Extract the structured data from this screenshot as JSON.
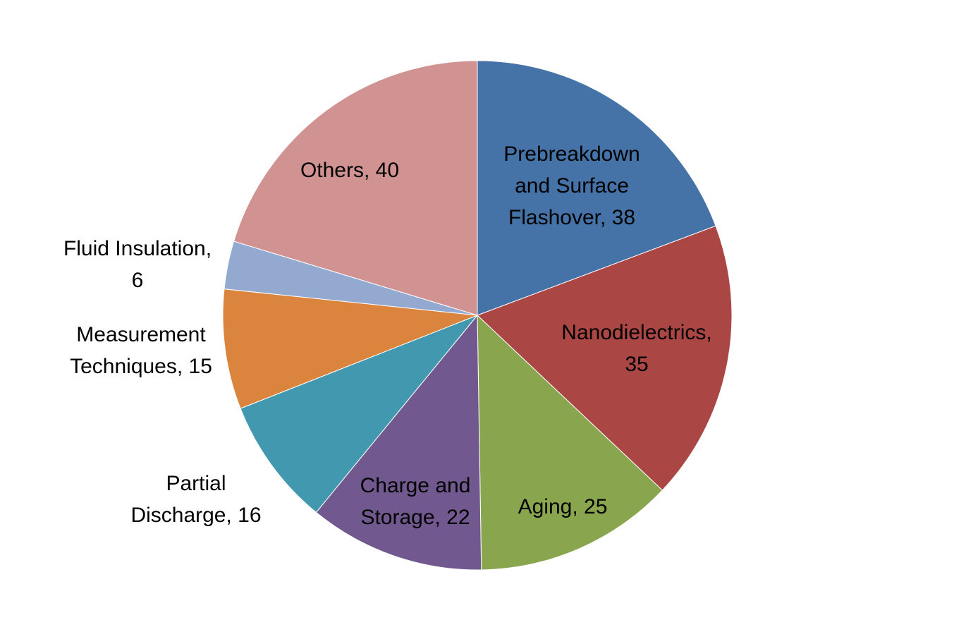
{
  "chart_data": {
    "type": "pie",
    "title": "",
    "start_angle_deg": 0,
    "direction": "clockwise",
    "slices": [
      {
        "label_lines": [
          "Prebreakdown",
          "and Surface",
          "Flashover, 38"
        ],
        "category": "Prebreakdown and Surface Flashover",
        "value": 38,
        "color": "#4572A7"
      },
      {
        "label_lines": [
          "Nanodielectrics,",
          "35"
        ],
        "category": "Nanodielectrics",
        "value": 35,
        "color": "#AA4643"
      },
      {
        "label_lines": [
          "Aging, 25"
        ],
        "category": "Aging",
        "value": 25,
        "color": "#89A54E"
      },
      {
        "label_lines": [
          "Charge and",
          "Storage, 22"
        ],
        "category": "Charge and Storage",
        "value": 22,
        "color": "#71588F"
      },
      {
        "label_lines": [
          "Partial",
          "Discharge, 16"
        ],
        "category": "Partial Discharge",
        "value": 16,
        "color": "#4198AF"
      },
      {
        "label_lines": [
          "Measurement",
          "Techniques, 15"
        ],
        "category": "Measurement Techniques",
        "value": 15,
        "color": "#DB843D"
      },
      {
        "label_lines": [
          "Fluid Insulation,",
          "6"
        ],
        "category": "Fluid Insulation",
        "value": 6,
        "color": "#93A9CF"
      },
      {
        "label_lines": [
          "Others, 40"
        ],
        "category": "Others",
        "value": 40,
        "color": "#D19392"
      }
    ]
  }
}
